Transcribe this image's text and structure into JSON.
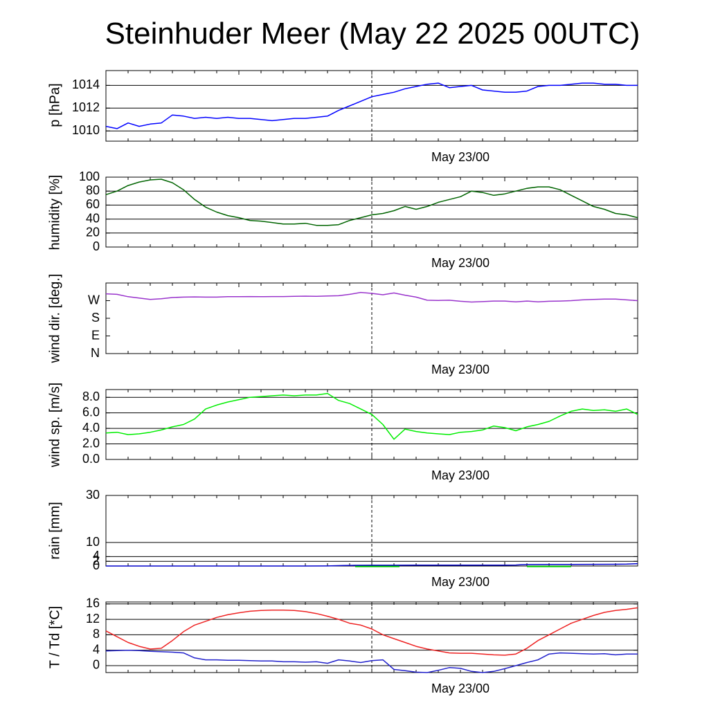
{
  "chart_data": [
    {
      "type": "line",
      "id": "pressure",
      "title": "Steinhuder Meer (May 22 2025 00UTC)",
      "ylabel": "p [hPa]",
      "xlabel": "May 23/00",
      "ylim": [
        1009.1,
        1015.3
      ],
      "yticks": [
        {
          "v": 1010,
          "label": "1010"
        },
        {
          "v": 1012,
          "label": "1012"
        },
        {
          "v": 1014,
          "label": "1014"
        }
      ],
      "grid": true,
      "series": [
        {
          "color": "#0000ff",
          "x": [
            0,
            1,
            2,
            3,
            4,
            5,
            6,
            7,
            8,
            9,
            10,
            11,
            12,
            13,
            14,
            15,
            16,
            17,
            18,
            19,
            20,
            21,
            22,
            23,
            24,
            25,
            26,
            27,
            28,
            29,
            30,
            31,
            32,
            33,
            34,
            35,
            36,
            37,
            38,
            39,
            40,
            41,
            42,
            43,
            44,
            45,
            46,
            47,
            48
          ],
          "y": [
            1010.4,
            1010.2,
            1010.7,
            1010.4,
            1010.6,
            1010.7,
            1011.4,
            1011.3,
            1011.1,
            1011.2,
            1011.1,
            1011.2,
            1011.1,
            1011.1,
            1011.0,
            1010.9,
            1011.0,
            1011.1,
            1011.1,
            1011.2,
            1011.3,
            1011.8,
            1012.2,
            1012.6,
            1013.0,
            1013.2,
            1013.4,
            1013.7,
            1013.9,
            1014.1,
            1014.2,
            1013.8,
            1013.9,
            1014.0,
            1013.6,
            1013.5,
            1013.4,
            1013.4,
            1013.5,
            1013.9,
            1014.0,
            1014.0,
            1014.1,
            1014.2,
            1014.2,
            1014.1,
            1014.1,
            1014.0,
            1014.0
          ]
        }
      ]
    },
    {
      "type": "line",
      "id": "humidity",
      "ylabel": "humidity [%]",
      "xlabel": "May 23/00",
      "ylim": [
        0,
        100
      ],
      "yticks": [
        {
          "v": 0,
          "label": "0"
        },
        {
          "v": 20,
          "label": "20"
        },
        {
          "v": 40,
          "label": "40"
        },
        {
          "v": 60,
          "label": "60"
        },
        {
          "v": 80,
          "label": "80"
        },
        {
          "v": 100,
          "label": "100"
        }
      ],
      "grid": true,
      "series": [
        {
          "color": "#006400",
          "x": [
            0,
            1,
            2,
            3,
            4,
            5,
            6,
            7,
            8,
            9,
            10,
            11,
            12,
            13,
            14,
            15,
            16,
            17,
            18,
            19,
            20,
            21,
            22,
            23,
            24,
            25,
            26,
            27,
            28,
            29,
            30,
            31,
            32,
            33,
            34,
            35,
            36,
            37,
            38,
            39,
            40,
            41,
            42,
            43,
            44,
            45,
            46,
            47,
            48
          ],
          "y": [
            75,
            80,
            88,
            93,
            96,
            97,
            92,
            82,
            68,
            57,
            50,
            45,
            42,
            38,
            37,
            35,
            33,
            33,
            34,
            31,
            31,
            32,
            38,
            42,
            46,
            48,
            52,
            58,
            54,
            58,
            64,
            68,
            72,
            80,
            78,
            74,
            76,
            80,
            84,
            86,
            86,
            82,
            74,
            66,
            58,
            54,
            48,
            46,
            42
          ]
        }
      ]
    },
    {
      "type": "line",
      "id": "wind_direction",
      "ylabel": "wind dir. [deg.]",
      "xlabel": "May 23/00",
      "ylim": [
        0,
        360
      ],
      "yticks": [
        {
          "v": 0,
          "label": "N"
        },
        {
          "v": 90,
          "label": "E"
        },
        {
          "v": 180,
          "label": "S"
        },
        {
          "v": 270,
          "label": "W"
        }
      ],
      "grid": false,
      "series": [
        {
          "color": "#9933cc",
          "x": [
            0,
            1,
            2,
            3,
            4,
            5,
            6,
            7,
            8,
            9,
            10,
            11,
            12,
            13,
            14,
            15,
            16,
            17,
            18,
            19,
            20,
            21,
            22,
            23,
            24,
            25,
            26,
            27,
            28,
            29,
            30,
            31,
            32,
            33,
            34,
            35,
            36,
            37,
            38,
            39,
            40,
            41,
            42,
            43,
            44,
            45,
            46,
            47,
            48
          ],
          "y": [
            305,
            302,
            290,
            283,
            276,
            280,
            286,
            288,
            289,
            288,
            288,
            290,
            290,
            291,
            290,
            291,
            291,
            292,
            293,
            292,
            294,
            295,
            302,
            312,
            307,
            300,
            309,
            298,
            288,
            272,
            271,
            272,
            267,
            263,
            265,
            268,
            268,
            264,
            268,
            264,
            267,
            268,
            270,
            274,
            276,
            278,
            278,
            274,
            270
          ]
        }
      ]
    },
    {
      "type": "line",
      "id": "wind_speed",
      "ylabel": "wind sp. [m/s]",
      "xlabel": "May 23/00",
      "ylim": [
        0,
        9
      ],
      "yticks": [
        {
          "v": 0,
          "label": "0.0"
        },
        {
          "v": 2,
          "label": "2.0"
        },
        {
          "v": 4,
          "label": "4.0"
        },
        {
          "v": 6,
          "label": "6.0"
        },
        {
          "v": 8,
          "label": "8.0"
        }
      ],
      "grid": true,
      "series": [
        {
          "color": "#00ee00",
          "x": [
            0,
            1,
            2,
            3,
            4,
            5,
            6,
            7,
            8,
            9,
            10,
            11,
            12,
            13,
            14,
            15,
            16,
            17,
            18,
            19,
            20,
            21,
            22,
            23,
            24,
            25,
            26,
            27,
            28,
            29,
            30,
            31,
            32,
            33,
            34,
            35,
            36,
            37,
            38,
            39,
            40,
            41,
            42,
            43,
            44,
            45,
            46,
            47,
            48
          ],
          "y": [
            3.4,
            3.5,
            3.2,
            3.3,
            3.5,
            3.8,
            4.2,
            4.5,
            5.2,
            6.5,
            7.0,
            7.4,
            7.7,
            8.0,
            8.1,
            8.2,
            8.3,
            8.2,
            8.3,
            8.3,
            8.5,
            7.6,
            7.2,
            6.5,
            5.8,
            4.5,
            2.6,
            3.9,
            3.6,
            3.4,
            3.3,
            3.2,
            3.5,
            3.6,
            3.8,
            4.3,
            4.1,
            3.7,
            4.2,
            4.5,
            4.9,
            5.6,
            6.2,
            6.5,
            6.3,
            6.4,
            6.2,
            6.5,
            5.8
          ]
        }
      ]
    },
    {
      "type": "line",
      "id": "rain",
      "ylabel": "rain [mm]",
      "xlabel": "May 23/00",
      "ylim": [
        0,
        30
      ],
      "yticks": [
        {
          "v": 0,
          "label": "0"
        },
        {
          "v": 2,
          "label": "2"
        },
        {
          "v": 4,
          "label": "4"
        },
        {
          "v": 10,
          "label": "10"
        },
        {
          "v": 30,
          "label": "30"
        }
      ],
      "grid": true,
      "bars": [
        {
          "x0": 22.5,
          "x1": 26.5,
          "v": 0.1,
          "color": "#00cc00"
        },
        {
          "x0": 38.0,
          "x1": 42.0,
          "v": 0.1,
          "color": "#00cc00"
        }
      ],
      "series": [
        {
          "color": "#0000cc",
          "x": [
            0,
            4,
            8,
            12,
            16,
            18,
            20,
            21.5,
            22.5,
            24,
            26,
            28,
            30,
            32,
            34,
            36,
            37,
            37.5,
            38,
            40,
            42,
            44,
            46,
            47,
            48
          ],
          "y": [
            0.0,
            0.0,
            0.0,
            0.0,
            0.0,
            0.0,
            0.02,
            0.2,
            0.3,
            0.33,
            0.33,
            0.35,
            0.35,
            0.35,
            0.35,
            0.37,
            0.4,
            0.55,
            0.62,
            0.65,
            0.68,
            0.72,
            0.75,
            0.8,
            1.0
          ]
        }
      ]
    },
    {
      "type": "line",
      "id": "temperature",
      "ylabel": "T / Td [*C]",
      "xlabel": "May 23/00",
      "ylim": [
        -1.8,
        16.5
      ],
      "yticks": [
        {
          "v": 0,
          "label": "0"
        },
        {
          "v": 4,
          "label": "4"
        },
        {
          "v": 8,
          "label": "8"
        },
        {
          "v": 12,
          "label": "12"
        },
        {
          "v": 16,
          "label": "16"
        }
      ],
      "grid": true,
      "series": [
        {
          "name": "T",
          "color": "#ee2222",
          "x": [
            0,
            1,
            2,
            3,
            4,
            5,
            6,
            7,
            8,
            9,
            10,
            11,
            12,
            13,
            14,
            15,
            16,
            17,
            18,
            19,
            20,
            21,
            22,
            23,
            24,
            25,
            26,
            27,
            28,
            29,
            30,
            31,
            32,
            33,
            34,
            35,
            36,
            37,
            38,
            39,
            40,
            41,
            42,
            43,
            44,
            45,
            46,
            47,
            48
          ],
          "y": [
            9.0,
            7.5,
            6.0,
            5.0,
            4.3,
            4.5,
            6.5,
            8.8,
            10.5,
            11.5,
            12.5,
            13.2,
            13.7,
            14.1,
            14.3,
            14.4,
            14.4,
            14.3,
            14.0,
            13.5,
            12.8,
            12.0,
            11.0,
            10.5,
            9.5,
            8.0,
            7.0,
            6.0,
            5.0,
            4.3,
            3.8,
            3.3,
            3.2,
            3.2,
            3.0,
            2.8,
            2.7,
            3.0,
            4.5,
            6.5,
            8.0,
            9.5,
            11.0,
            12.0,
            13.0,
            13.8,
            14.3,
            14.6,
            15.0
          ]
        },
        {
          "name": "Td",
          "color": "#2222cc",
          "x": [
            0,
            1,
            2,
            3,
            4,
            5,
            6,
            7,
            8,
            9,
            10,
            11,
            12,
            13,
            14,
            15,
            16,
            17,
            18,
            19,
            20,
            21,
            22,
            23,
            24,
            25,
            26,
            27,
            28,
            29,
            30,
            31,
            32,
            33,
            34,
            35,
            36,
            37,
            38,
            39,
            40,
            41,
            42,
            43,
            44,
            45,
            46,
            47,
            48
          ],
          "y": [
            3.8,
            3.9,
            4.0,
            3.9,
            3.7,
            3.6,
            3.5,
            3.3,
            2.0,
            1.5,
            1.5,
            1.4,
            1.4,
            1.3,
            1.2,
            1.2,
            1.0,
            1.0,
            0.9,
            1.0,
            0.6,
            1.5,
            1.2,
            0.8,
            1.3,
            1.5,
            -1.0,
            -1.3,
            -1.7,
            -1.8,
            -1.2,
            -0.5,
            -0.7,
            -1.5,
            -1.8,
            -1.5,
            -0.8,
            0.0,
            0.8,
            1.5,
            3.0,
            3.3,
            3.2,
            3.1,
            3.0,
            3.1,
            2.8,
            3.0,
            3.0
          ]
        }
      ]
    }
  ]
}
